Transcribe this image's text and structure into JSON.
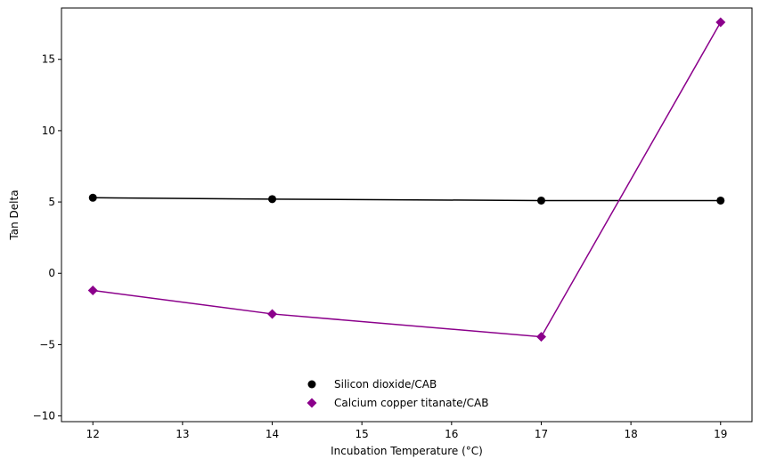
{
  "chart_data": {
    "type": "line",
    "xlabel": "Incubation Temperature (°C)",
    "ylabel": "Tan Delta",
    "xlim": [
      11.65,
      19.35
    ],
    "ylim": [
      -10.4,
      18.6
    ],
    "x_ticks": [
      12,
      13,
      14,
      15,
      16,
      17,
      18,
      19
    ],
    "y_ticks": [
      -10,
      -5,
      0,
      5,
      10,
      15
    ],
    "grid": false,
    "legend_position": "bottom-center",
    "series": [
      {
        "name": "Silicon dioxide/CAB",
        "color": "#000000",
        "marker": "circle",
        "x": [
          12,
          14,
          17,
          19
        ],
        "y": [
          5.3,
          5.2,
          5.1,
          5.1
        ]
      },
      {
        "name": "Calcium copper titanate/CAB",
        "color": "#8b008b",
        "marker": "diamond",
        "x": [
          12,
          14,
          17,
          19
        ],
        "y": [
          -1.2,
          -2.85,
          -4.45,
          17.6
        ]
      }
    ]
  }
}
